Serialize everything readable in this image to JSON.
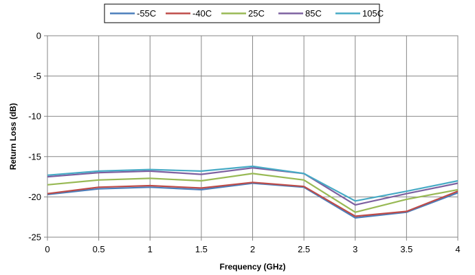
{
  "chart_data": {
    "type": "line",
    "title": "",
    "xlabel": "Frequency (GHz)",
    "ylabel": "Return Loss (dB)",
    "x": [
      0,
      0.5,
      1,
      1.5,
      2,
      2.5,
      3,
      3.5,
      4
    ],
    "x_tick_labels": [
      "0",
      "0.5",
      "1",
      "1.5",
      "2",
      "2.5",
      "3",
      "3.5",
      "4"
    ],
    "y_tick_labels": [
      "0",
      "-5",
      "-10",
      "-15",
      "-20",
      "-25"
    ],
    "xlim": [
      0,
      4
    ],
    "ylim": [
      -25,
      0
    ],
    "grid": true,
    "legend_position": "top",
    "series": [
      {
        "name": "-55C",
        "color": "#4a7ebb",
        "values": [
          -19.7,
          -19.0,
          -18.8,
          -19.1,
          -18.3,
          -18.8,
          -22.6,
          -21.9,
          -19.5
        ]
      },
      {
        "name": "-40C",
        "color": "#be4b48",
        "values": [
          -19.6,
          -18.8,
          -18.6,
          -18.9,
          -18.2,
          -18.7,
          -22.4,
          -21.8,
          -19.3
        ]
      },
      {
        "name": "25C",
        "color": "#98b954",
        "values": [
          -18.5,
          -17.9,
          -17.7,
          -18.0,
          -17.1,
          -17.9,
          -21.9,
          -20.3,
          -19.1
        ]
      },
      {
        "name": "85C",
        "color": "#7d60a0",
        "values": [
          -17.5,
          -17.0,
          -16.8,
          -17.2,
          -16.4,
          -17.1,
          -21.0,
          -19.6,
          -18.3
        ]
      },
      {
        "name": "105C",
        "color": "#46aac5",
        "values": [
          -17.3,
          -16.8,
          -16.6,
          -16.8,
          -16.2,
          -17.1,
          -20.5,
          -19.3,
          -18.0
        ]
      }
    ]
  }
}
